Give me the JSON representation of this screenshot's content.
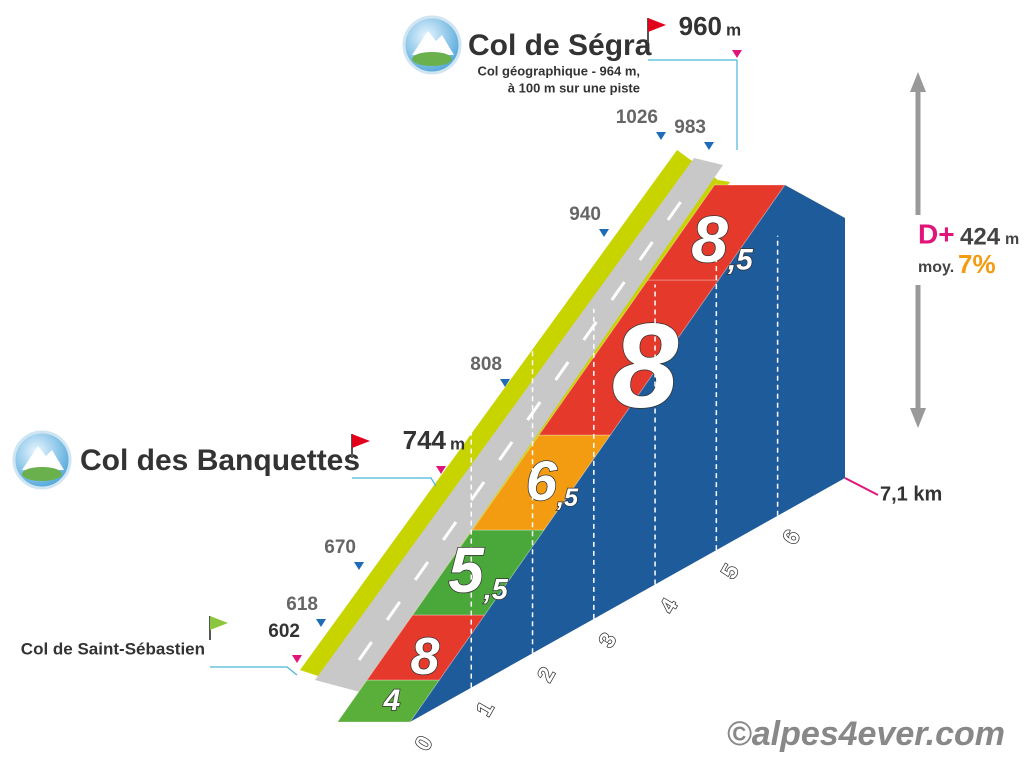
{
  "passes": [
    {
      "name": "Col de Saint-Sébastien",
      "elevation": "602"
    },
    {
      "name": "Col des Banquettes",
      "elevation": "744",
      "unit": "m"
    },
    {
      "name": "Col de Ségra",
      "elevation": "960",
      "unit": "m",
      "note": [
        "Col géographique - 964 m,",
        "à 100 m sur une piste"
      ]
    }
  ],
  "elevation_markers": [
    "618",
    "670",
    "808",
    "940",
    "1026",
    "983"
  ],
  "gradients": [
    {
      "main": "4"
    },
    {
      "main": "8"
    },
    {
      "main": "5",
      "sub": ",5"
    },
    {
      "main": "6",
      "sub": ",5"
    },
    {
      "main": "8"
    },
    {
      "main": "8",
      "sub": ",5"
    }
  ],
  "km_ticks": [
    "0",
    "1",
    "2",
    "3",
    "4",
    "5",
    "6"
  ],
  "distance": "7,1 km",
  "summary": {
    "gain_label": "D+",
    "gain": "424",
    "gain_unit": "m",
    "avg_label": "moy.",
    "avg": "7%"
  },
  "credit": "©alpes4ever.com"
}
